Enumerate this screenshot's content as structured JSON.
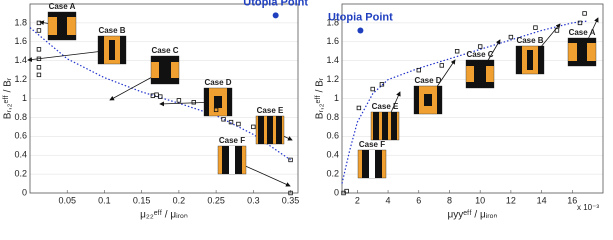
{
  "chart_data": [
    {
      "type": "scatter",
      "xlabel": "μ₂₂ᵉᶠᶠ / μᵢᵣₒₙ",
      "ylabel": "Bᵣ,₂ᵉᶠᶠ / Bᵣ",
      "xlim": [
        0,
        0.36
      ],
      "ylim": [
        0,
        2
      ],
      "xticks": [
        0.05,
        0.1,
        0.15,
        0.2,
        0.25,
        0.3,
        0.35
      ],
      "yticks": [
        0,
        0.2,
        0.4,
        0.6,
        0.8,
        1,
        1.2,
        1.4,
        1.6,
        1.8
      ],
      "marker_color": "#111111",
      "x": [
        0.012,
        0.012,
        0.012,
        0.012,
        0.012,
        0.012,
        0.165,
        0.17,
        0.175,
        0.2,
        0.22,
        0.25,
        0.26,
        0.27,
        0.28,
        0.3,
        0.35,
        0.35
      ],
      "values": [
        1.8,
        1.72,
        1.52,
        1.42,
        1.33,
        1.25,
        1.03,
        1.04,
        1.02,
        0.98,
        0.96,
        0.88,
        0.78,
        0.75,
        0.73,
        0.7,
        0.35,
        0.0
      ],
      "trend": {
        "color": "#2233cc",
        "x": [
          0,
          0.05,
          0.1,
          0.15,
          0.2,
          0.25,
          0.3,
          0.35
        ],
        "values": [
          1.75,
          1.42,
          1.22,
          1.07,
          0.95,
          0.82,
          0.62,
          0.35
        ]
      },
      "utopia": {
        "text": "Utopia Point",
        "x": 0.33,
        "y": 1.88,
        "color": "#1f3fbf"
      },
      "cases": [
        "Case A",
        "Case B",
        "Case C",
        "Case D",
        "Case E",
        "Case F"
      ]
    },
    {
      "type": "scatter",
      "xlabel": "μyyᵉᶠᶠ / μᵢᵣₒₙ",
      "ylabel": "Bᵣ,₂ᵉᶠᶠ / Bᵣ",
      "x_multiplier": "x 10⁻³",
      "xlim": [
        1,
        18
      ],
      "ylim": [
        0,
        2
      ],
      "xticks": [
        2,
        4,
        6,
        8,
        10,
        12,
        14,
        16
      ],
      "yticks": [
        0,
        0.2,
        0.4,
        0.6,
        0.8,
        1,
        1.2,
        1.4,
        1.6,
        1.8
      ],
      "marker_color": "#111111",
      "x": [
        1.1,
        1.3,
        2.1,
        3.0,
        3.6,
        6.0,
        7.5,
        8.5,
        10.0,
        12.0,
        13.6,
        15.0,
        16.5,
        16.8
      ],
      "values": [
        0.0,
        0.02,
        0.9,
        1.1,
        1.15,
        1.3,
        1.35,
        1.5,
        1.55,
        1.65,
        1.75,
        1.72,
        1.8,
        1.9
      ],
      "trend": {
        "color": "#2233cc",
        "x": [
          1,
          1.5,
          2,
          3,
          4,
          6,
          8,
          10,
          12,
          14,
          16,
          17
        ],
        "values": [
          0.1,
          0.45,
          0.75,
          1.05,
          1.2,
          1.32,
          1.42,
          1.52,
          1.62,
          1.72,
          1.8,
          1.82
        ]
      },
      "utopia": {
        "text": "Utopia Point",
        "x": 2.2,
        "y": 1.72,
        "color": "#1f3fbf"
      },
      "cases": [
        "Case A",
        "Case B",
        "Case C",
        "Case D",
        "Case E",
        "Case F"
      ]
    }
  ]
}
